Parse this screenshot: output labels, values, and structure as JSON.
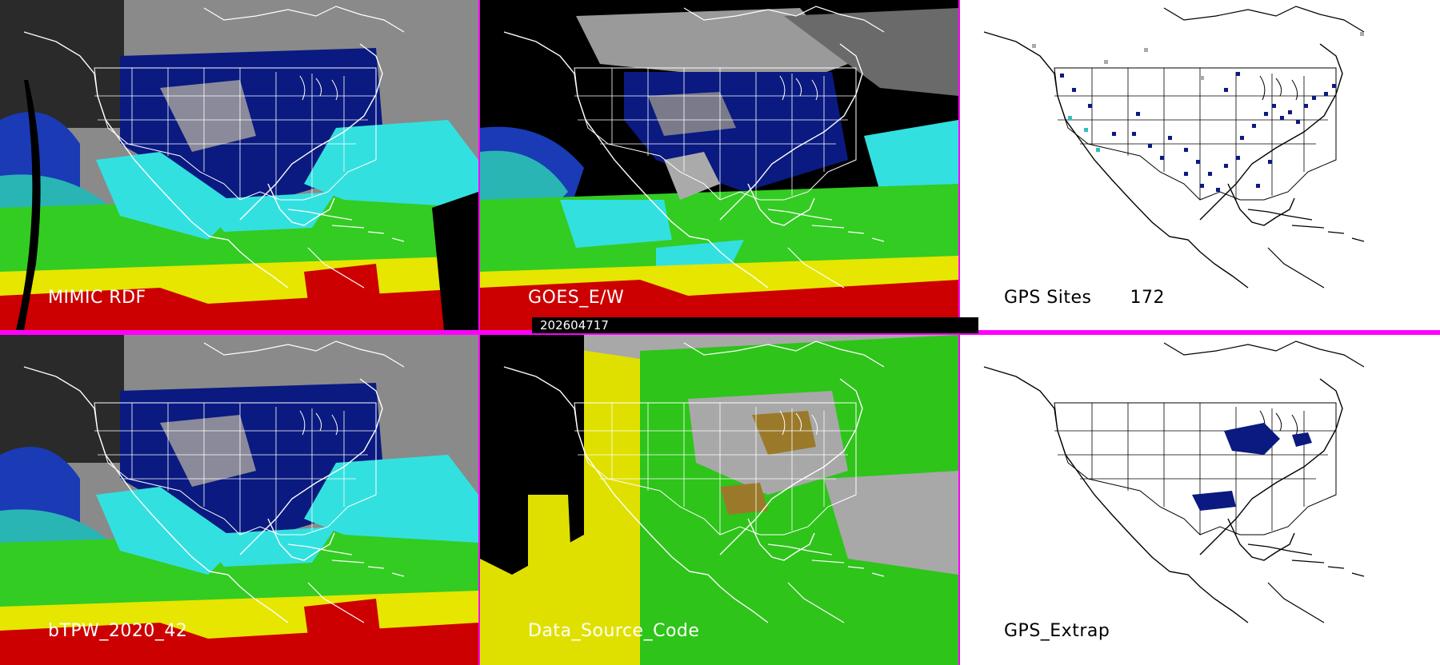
{
  "panels": {
    "mimic": {
      "label": "MIMIC RDF"
    },
    "goes": {
      "label": "GOES_E/W"
    },
    "gps_sites": {
      "label": "GPS Sites",
      "count": "172"
    },
    "btpw": {
      "label": "bTPW_2020_42"
    },
    "data_source": {
      "label": "Data_Source_Code"
    },
    "gps_extrap": {
      "label": "GPS_Extrap"
    }
  },
  "timestamp": "202604717",
  "colors": {
    "divider": "#ff00ff",
    "tpw_blue": "#0a1a80",
    "tpw_cyan": "#33e0e0",
    "tpw_green": "#33cc22",
    "tpw_yellow": "#e6e600",
    "tpw_red": "#cc0000",
    "source_gray": "#a8a8a8",
    "source_green": "#2ec41a",
    "source_yellow": "#e0e000"
  }
}
